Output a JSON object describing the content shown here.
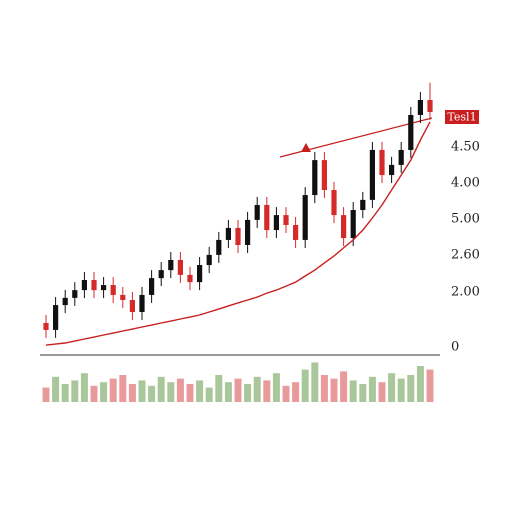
{
  "chart_data": {
    "type": "candlestick",
    "ylim": [
      0,
      100
    ],
    "open": [
      9,
      6.4,
      15.7,
      18.4,
      21.3,
      25.1,
      21.3,
      23.2,
      19.5,
      17.6,
      13.1,
      19.5,
      25.8,
      28.8,
      32.6,
      27,
      24.3,
      30.7,
      34.5,
      40.1,
      44.6,
      38.2,
      47.6,
      53.2,
      43.8,
      49.4,
      45.7,
      40.1,
      56.9,
      70,
      58.8,
      49.4,
      40.8,
      51.3,
      55.1,
      73.8,
      64.4,
      68.2,
      73.8,
      86.9,
      92.5
    ],
    "high": [
      12,
      18.7,
      21.4,
      24.3,
      28.1,
      28.1,
      26.2,
      26.2,
      22.5,
      20.6,
      22.5,
      28.8,
      31.8,
      35.6,
      35.6,
      30,
      33.7,
      37.5,
      43.1,
      47.6,
      47.6,
      50.6,
      56.2,
      56.2,
      52.4,
      52.4,
      48.7,
      59.9,
      73,
      73,
      61.8,
      52.4,
      54.3,
      58.1,
      76.8,
      76.8,
      71.2,
      76.8,
      89.9,
      95.5,
      99
    ],
    "low": [
      3.4,
      3.4,
      12.7,
      15.4,
      18.3,
      18.3,
      18.3,
      16.5,
      14.6,
      10.1,
      10.1,
      16.5,
      22.8,
      25.8,
      24,
      21.3,
      21.3,
      27.7,
      31.5,
      37.1,
      35.2,
      35.2,
      44.6,
      40.8,
      40.8,
      42.7,
      37.1,
      37.1,
      53.9,
      55.8,
      46.4,
      37.8,
      37.8,
      48.3,
      52.1,
      61.4,
      61.4,
      65.2,
      70.8,
      83.9,
      85
    ],
    "close": [
      6.4,
      15.7,
      18.4,
      21.3,
      25.1,
      21.3,
      23.2,
      19.5,
      17.6,
      13.1,
      19.5,
      25.8,
      28.8,
      32.6,
      27,
      24.3,
      30.7,
      34.5,
      40.1,
      44.6,
      38.2,
      47.6,
      53.2,
      43.8,
      49.4,
      45.7,
      40.1,
      56.9,
      70,
      58.8,
      49.4,
      40.8,
      51.3,
      55.1,
      73.8,
      64.4,
      68.2,
      73.8,
      86.9,
      92.5,
      88
    ],
    "up_color": "#111111",
    "down_color": "#d42a2a",
    "ma": {
      "color": "#c81e1e",
      "values": [
        0.7,
        1.1,
        1.5,
        2.2,
        3,
        3.7,
        4.5,
        5.2,
        6,
        6.7,
        7.5,
        8.2,
        9,
        9.7,
        10.5,
        11.2,
        12,
        13.1,
        14.2,
        15.4,
        16.5,
        17.6,
        18.7,
        20.2,
        21.3,
        22.8,
        24.3,
        26.6,
        28.8,
        31.5,
        34.1,
        37.1,
        40.1,
        43.8,
        48.3,
        53.2,
        58.8,
        64.4,
        70,
        77.5,
        84.3
      ]
    },
    "volume": {
      "up_color": "#a9c79b",
      "down_color": "#e99b9b",
      "lim": [
        0,
        25
      ],
      "values": [
        8,
        14,
        10,
        12,
        16,
        9,
        11,
        13,
        15,
        10,
        12,
        9,
        14,
        11,
        13,
        10,
        12,
        8,
        15,
        11,
        13,
        10,
        14,
        12,
        16,
        9,
        11,
        18,
        22,
        15,
        13,
        17,
        12,
        10,
        14,
        11,
        16,
        13,
        15,
        20,
        18
      ]
    },
    "axis_labels": [
      "4.50",
      "4.00",
      "5.00",
      "2.60",
      "2.00",
      "0"
    ],
    "tag": "Tesl1"
  }
}
